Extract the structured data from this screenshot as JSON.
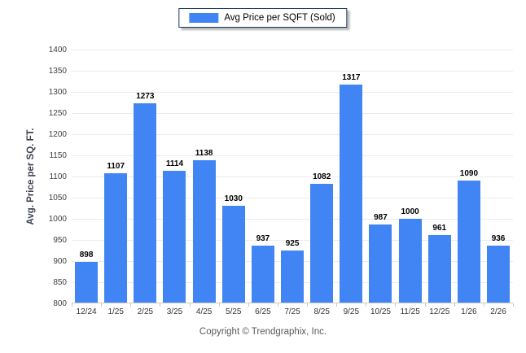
{
  "legend": {
    "label": "Avg Price per SQFT (Sold)",
    "swatch_color": "#4184F3"
  },
  "chart_data": {
    "type": "bar",
    "title": "",
    "legend": [
      "Avg Price per SQFT (Sold)"
    ],
    "categories": [
      "12/24",
      "1/25",
      "2/25",
      "3/25",
      "4/25",
      "5/25",
      "6/25",
      "7/25",
      "8/25",
      "9/25",
      "10/25",
      "11/25",
      "12/25",
      "1/26",
      "2/26"
    ],
    "series": [
      {
        "name": "Avg Price per SQFT (Sold)",
        "values": [
          898,
          1107,
          1273,
          1114,
          1138,
          1030,
          937,
          925,
          1082,
          1317,
          987,
          1000,
          961,
          1090,
          936
        ]
      }
    ],
    "xlabel": "",
    "ylabel": "Avg. Price per SQ. FT.",
    "ylim": [
      800,
      1400
    ],
    "yticks": [
      800,
      850,
      900,
      950,
      1000,
      1050,
      1100,
      1150,
      1200,
      1250,
      1300,
      1350,
      1400
    ],
    "grid": "horizontal",
    "legend_position": "top-center",
    "bar_color": "#4184F3",
    "value_labels": true
  },
  "colors": {
    "bar": "#4184F3",
    "legend_border": "#17375E",
    "gridline": "#ebebeb",
    "axis_line": "#c9c9c9",
    "tick_text": "#3f3f46",
    "category_text": "#333333",
    "value_text": "#000000",
    "footer_text": "#595959"
  },
  "footer": {
    "copyright": "Copyright © Trendgraphix, Inc."
  }
}
